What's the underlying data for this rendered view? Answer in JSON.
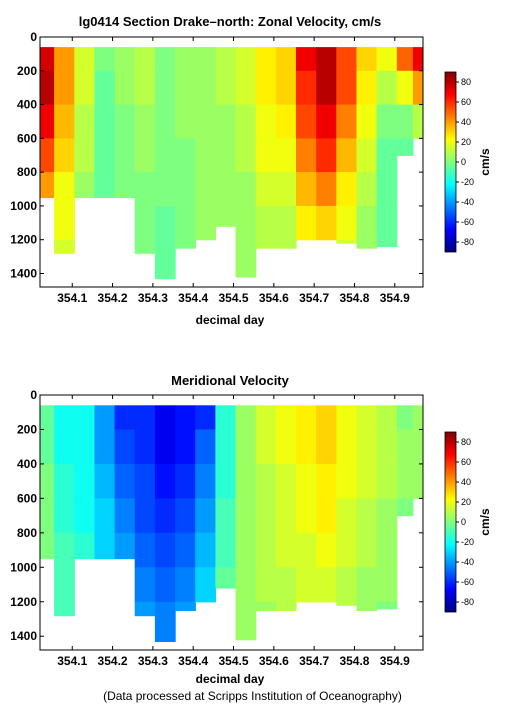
{
  "footer": "(Data processed at Scripps Institution of Oceanography)",
  "colorbar": {
    "label": "cm/s",
    "ticks": [
      80,
      60,
      40,
      20,
      0,
      -20,
      -40,
      -60,
      -80
    ],
    "range": [
      -90,
      90
    ],
    "colors": [
      "#00007f",
      "#0000ff",
      "#007fff",
      "#00ffff",
      "#7fff7f",
      "#ffff00",
      "#ff7f00",
      "#ff0000",
      "#7f0000"
    ]
  },
  "chart_data": [
    {
      "type": "heatmap",
      "title": "lg0414 Section Drake–north: Zonal Velocity, cm/s",
      "xlabel": "decimal day",
      "ylabel": "",
      "xlim": [
        354.02,
        354.97
      ],
      "ylim": [
        1480,
        0
      ],
      "xticks": [
        354.1,
        354.2,
        354.3,
        354.4,
        354.5,
        354.6,
        354.7,
        354.8,
        354.9
      ],
      "yticks": [
        0,
        200,
        400,
        600,
        800,
        1000,
        1200,
        1400
      ],
      "x": [
        354.03,
        354.08,
        354.13,
        354.18,
        354.23,
        354.28,
        354.33,
        354.38,
        354.43,
        354.48,
        354.53,
        354.58,
        354.63,
        354.68,
        354.73,
        354.78,
        354.83,
        354.88,
        354.93,
        354.96
      ],
      "depths": [
        100,
        300,
        500,
        700,
        900,
        1100,
        1300
      ],
      "bottom_depth": [
        950,
        1280,
        950,
        950,
        950,
        1280,
        1430,
        1250,
        1200,
        1120,
        1420,
        1250,
        1250,
        1200,
        1200,
        1220,
        1250,
        1240,
        700,
        600
      ],
      "values": [
        [
          75,
          40,
          15,
          0,
          5,
          10,
          0,
          5,
          5,
          10,
          15,
          25,
          30,
          70,
          80,
          55,
          30,
          20,
          50,
          70
        ],
        [
          80,
          40,
          15,
          -5,
          5,
          10,
          0,
          5,
          5,
          10,
          15,
          25,
          30,
          60,
          80,
          55,
          25,
          10,
          20,
          40
        ],
        [
          70,
          35,
          10,
          -5,
          0,
          5,
          0,
          5,
          5,
          5,
          10,
          20,
          25,
          55,
          70,
          45,
          20,
          0,
          0,
          10
        ],
        [
          55,
          30,
          10,
          -5,
          0,
          5,
          0,
          0,
          5,
          5,
          10,
          20,
          20,
          45,
          60,
          35,
          15,
          -5,
          -5,
          0
        ],
        [
          40,
          20,
          5,
          -5,
          0,
          0,
          0,
          0,
          5,
          5,
          5,
          15,
          15,
          35,
          45,
          25,
          10,
          -5,
          -5,
          0
        ],
        [
          30,
          20,
          5,
          -5,
          0,
          0,
          -5,
          0,
          5,
          5,
          5,
          10,
          10,
          25,
          30,
          20,
          5,
          -5,
          -5,
          0
        ],
        [
          20,
          15,
          5,
          -5,
          0,
          0,
          -5,
          0,
          0,
          0,
          5,
          10,
          10,
          20,
          20,
          15,
          5,
          -5,
          -5,
          0
        ]
      ]
    },
    {
      "type": "heatmap",
      "title": "Meridional Velocity",
      "xlabel": "decimal day",
      "ylabel": "",
      "xlim": [
        354.02,
        354.97
      ],
      "ylim": [
        1480,
        0
      ],
      "xticks": [
        354.1,
        354.2,
        354.3,
        354.4,
        354.5,
        354.6,
        354.7,
        354.8,
        354.9
      ],
      "yticks": [
        0,
        200,
        400,
        600,
        800,
        1000,
        1200,
        1400
      ],
      "x": [
        354.03,
        354.08,
        354.13,
        354.18,
        354.23,
        354.28,
        354.33,
        354.38,
        354.43,
        354.48,
        354.53,
        354.58,
        354.63,
        354.68,
        354.73,
        354.78,
        354.83,
        354.88,
        354.93,
        354.96
      ],
      "depths": [
        100,
        300,
        500,
        700,
        900,
        1100,
        1300
      ],
      "bottom_depth": [
        950,
        1280,
        950,
        950,
        950,
        1280,
        1430,
        1250,
        1200,
        1120,
        1420,
        1250,
        1250,
        1200,
        1200,
        1220,
        1250,
        1240,
        700,
        600
      ],
      "values": [
        [
          -5,
          -20,
          -20,
          -40,
          -60,
          -60,
          -70,
          -65,
          -60,
          -15,
          5,
          15,
          20,
          25,
          30,
          20,
          15,
          10,
          0,
          5
        ],
        [
          -5,
          -20,
          -20,
          -40,
          -55,
          -60,
          -70,
          -65,
          -50,
          -15,
          5,
          15,
          20,
          25,
          30,
          20,
          15,
          10,
          5,
          5
        ],
        [
          0,
          -15,
          -20,
          -35,
          -50,
          -55,
          -65,
          -60,
          -45,
          -15,
          5,
          10,
          15,
          20,
          25,
          20,
          15,
          10,
          5,
          5
        ],
        [
          0,
          -15,
          -20,
          -30,
          -45,
          -55,
          -60,
          -55,
          -40,
          -10,
          5,
          10,
          15,
          20,
          25,
          15,
          10,
          5,
          0,
          5
        ],
        [
          0,
          -10,
          -15,
          -30,
          -40,
          -50,
          -55,
          -50,
          -35,
          -10,
          5,
          10,
          15,
          15,
          20,
          15,
          10,
          5,
          0,
          0
        ],
        [
          0,
          -10,
          -15,
          -25,
          -35,
          -45,
          -50,
          -45,
          -30,
          -5,
          5,
          10,
          10,
          15,
          15,
          10,
          5,
          5,
          0,
          0
        ],
        [
          0,
          -10,
          -10,
          -20,
          -30,
          -40,
          -45,
          -40,
          -25,
          -5,
          5,
          5,
          10,
          10,
          10,
          10,
          5,
          0,
          0,
          0
        ]
      ]
    }
  ]
}
